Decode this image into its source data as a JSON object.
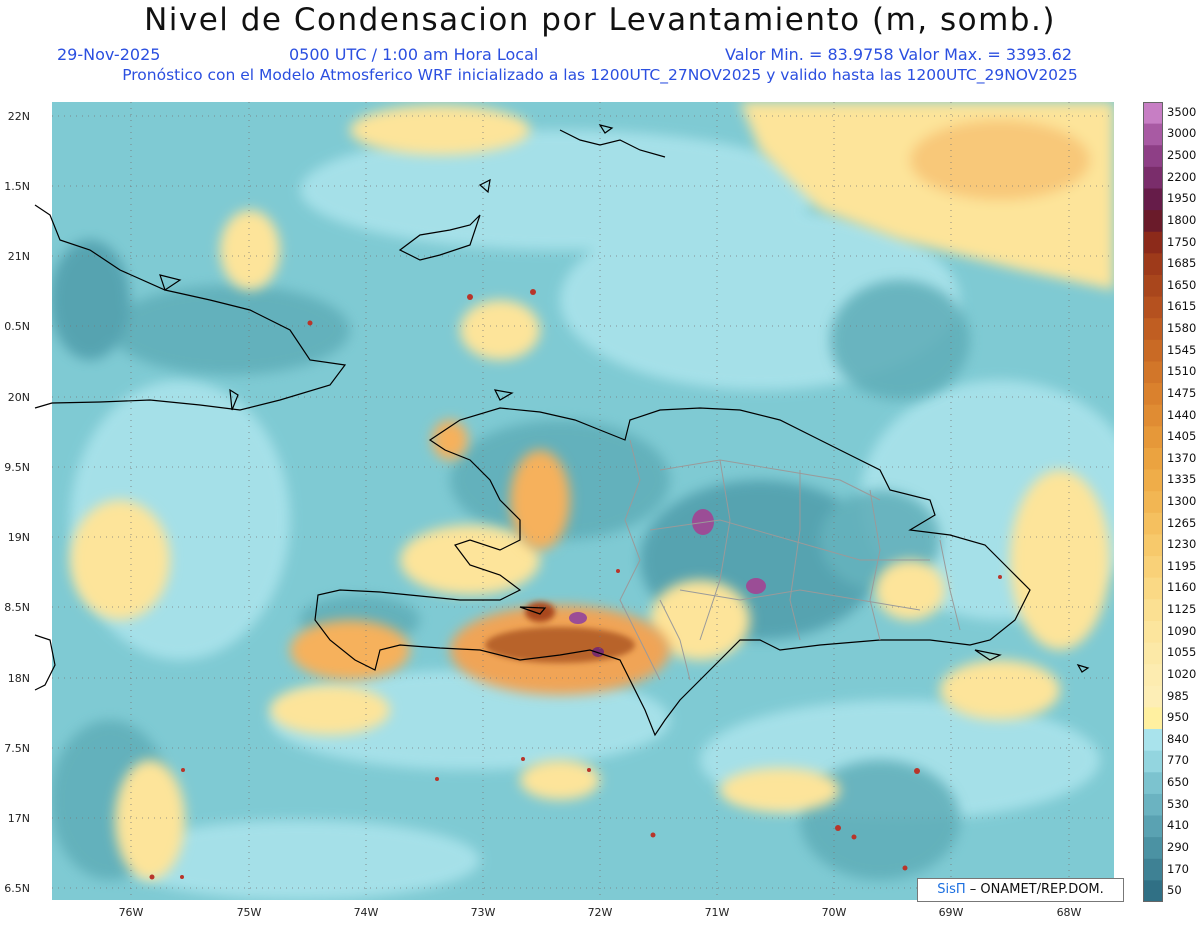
{
  "header": {
    "title": "Nivel de Condensacion por Levantamiento (m, somb.)",
    "date": "29-Nov-2025",
    "time": "0500 UTC / 1:00 am Hora Local",
    "min_max": "Valor Min. = 83.9758   Valor Max. = 3393.62",
    "model_line": "Pronóstico con el Modelo Atmosferico WRF inicializado a las 1200UTC_27NOV2025 y valido hasta las  1200UTC_29NOV2025"
  },
  "map": {
    "lat_labels": [
      "22N",
      "1.5N",
      "21N",
      "0.5N",
      "20N",
      "9.5N",
      "19N",
      "8.5N",
      "18N",
      "7.5N",
      "17N",
      "6.5N"
    ],
    "lon_labels": [
      "76W",
      "75W",
      "74W",
      "73W",
      "72W",
      "71W",
      "70W",
      "69W",
      "68W"
    ],
    "colors": {
      "ocean_base": "#7fcad3",
      "light_cyan": "#a8e2ea",
      "mid_teal": "#5fadb8",
      "dark_teal": "#3f8f9f",
      "yellow": "#fde49a",
      "orange": "#f6b15c",
      "brown": "#b8632a",
      "purple": "#9b4d96"
    }
  },
  "colorbar": {
    "labels": [
      "3500",
      "3000",
      "2500",
      "2200",
      "1950",
      "1800",
      "1750",
      "1685",
      "1650",
      "1615",
      "1580",
      "1545",
      "1510",
      "1475",
      "1440",
      "1405",
      "1370",
      "1335",
      "1300",
      "1265",
      "1230",
      "1195",
      "1160",
      "1125",
      "1090",
      "1055",
      "1020",
      "985",
      "950",
      "840",
      "770",
      "650",
      "530",
      "410",
      "290",
      "170",
      "50"
    ],
    "colors": [
      "#c77ec4",
      "#a85aa3",
      "#8e3f86",
      "#7a2d6b",
      "#661c49",
      "#6a1b2a",
      "#8c2a1a",
      "#9e3a1a",
      "#a9461c",
      "#b5511f",
      "#c05e22",
      "#c96a25",
      "#d27629",
      "#da812d",
      "#e08c33",
      "#e69839",
      "#eba340",
      "#efad49",
      "#f2b653",
      "#f5c05f",
      "#f7c96b",
      "#f9d178",
      "#fad985",
      "#fbe092",
      "#fce59d",
      "#fce9a7",
      "#fdecb0",
      "#fdeeb6",
      "#fff0a0",
      "#a9e3ec",
      "#93d5df",
      "#7cc3cf",
      "#6bb3c1",
      "#5aa2b2",
      "#4b92a3",
      "#3e8194",
      "#307085"
    ]
  },
  "credit": {
    "brand": "SisΠ",
    "text": "– ONAMET/REP.DOM."
  }
}
